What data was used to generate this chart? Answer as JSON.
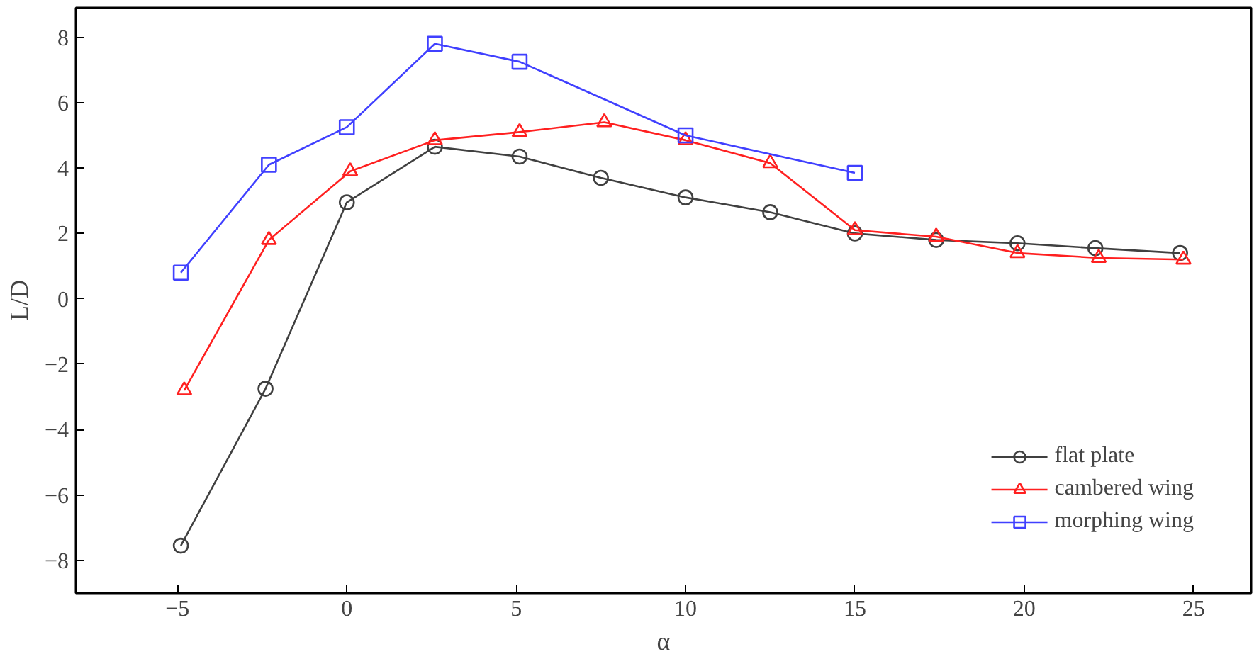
{
  "chart_data": {
    "type": "line",
    "xlabel": "α",
    "ylabel": "L/D",
    "xlim": [
      -8,
      26.7
    ],
    "ylim": [
      -9,
      8.9
    ],
    "xticks": [
      -5,
      0,
      5,
      10,
      15,
      20,
      25
    ],
    "yticks": [
      -8,
      -6,
      -4,
      -2,
      0,
      2,
      4,
      6,
      8
    ],
    "grid": false,
    "legend": "bottom right",
    "line_style": "solid",
    "series": [
      {
        "name": "flat plate",
        "color": "#404040",
        "marker": "circle",
        "x": [
          -4.9,
          -2.4,
          0,
          2.6,
          5.1,
          7.5,
          10,
          12.5,
          15,
          17.4,
          19.8,
          22.1,
          24.6
        ],
        "values": [
          -7.55,
          -2.75,
          2.95,
          4.65,
          4.35,
          3.7,
          3.1,
          2.65,
          2.0,
          1.8,
          1.7,
          1.55,
          1.4
        ]
      },
      {
        "name": "cambered wing",
        "color": "#ff2020",
        "marker": "triangle",
        "x": [
          -4.8,
          -2.3,
          0.1,
          2.6,
          5.1,
          7.6,
          10,
          12.5,
          15,
          17.4,
          19.8,
          22.2,
          24.7
        ],
        "values": [
          -2.8,
          1.8,
          3.9,
          4.85,
          5.1,
          5.4,
          4.85,
          4.15,
          2.1,
          1.9,
          1.4,
          1.25,
          1.2
        ]
      },
      {
        "name": "morphing wing",
        "color": "#4040ff",
        "marker": "square",
        "x": [
          -4.9,
          -2.3,
          0,
          2.6,
          5.1,
          10,
          15
        ],
        "values": [
          0.8,
          4.1,
          5.25,
          7.8,
          7.25,
          5.0,
          3.85
        ]
      }
    ]
  }
}
